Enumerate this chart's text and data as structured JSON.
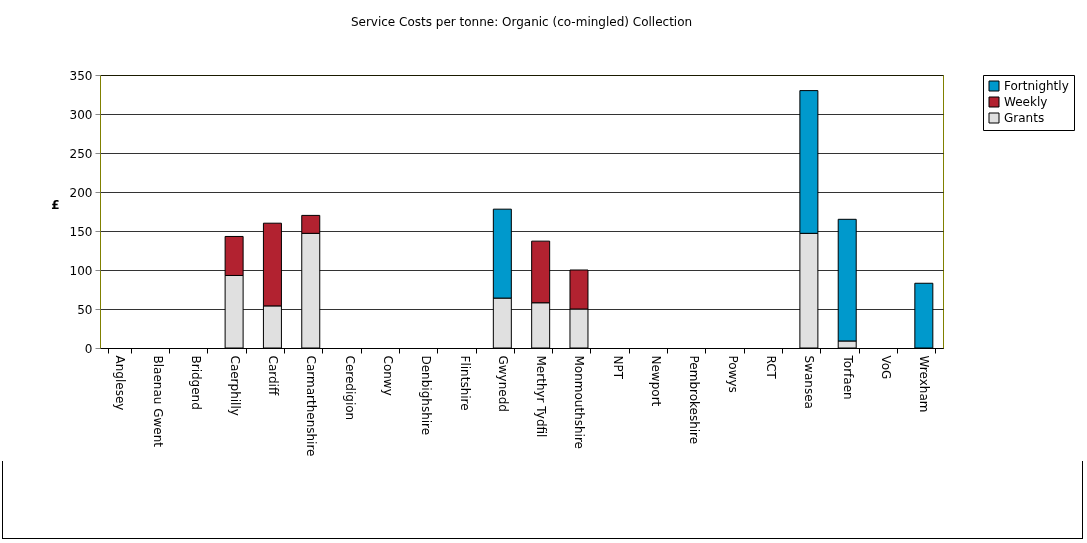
{
  "chart_data": {
    "type": "bar",
    "title": "Service Costs per tonne: Organic (co-mingled) Collection",
    "ylabel": "£",
    "categories": [
      "Anglesey",
      "Blaenau Gwent",
      "Bridgend",
      "Caerphilly",
      "Cardiff",
      "Carmarthenshire",
      "Ceredigion",
      "Conwy",
      "Denbighshire",
      "Flintshire",
      "Gwynedd",
      "Merthyr Tydfil",
      "Monmouthshire",
      "NPT",
      "Newport",
      "Pembrokeshire",
      "Powys",
      "RCT",
      "Swansea",
      "Torfaen",
      "VoG",
      "Wrexham"
    ],
    "stacked": true,
    "series": [
      {
        "name": "Grants",
        "color": "#e0e0e0",
        "values": [
          null,
          null,
          null,
          93,
          54,
          147,
          null,
          null,
          null,
          null,
          64,
          58,
          50,
          null,
          null,
          null,
          null,
          null,
          147,
          9,
          null,
          null
        ]
      },
      {
        "name": "Weekly",
        "color": "#b22230",
        "values": [
          null,
          null,
          null,
          50,
          106,
          23,
          null,
          null,
          null,
          null,
          null,
          79,
          50,
          null,
          null,
          null,
          null,
          null,
          null,
          null,
          null,
          null
        ]
      },
      {
        "name": "Fortnightly",
        "color": "#0099cc",
        "values": [
          null,
          null,
          null,
          null,
          null,
          null,
          null,
          null,
          null,
          null,
          114,
          null,
          null,
          null,
          null,
          null,
          null,
          null,
          183,
          156,
          null,
          83
        ]
      }
    ],
    "ylim": [
      0,
      350
    ],
    "yticks": [
      0,
      50,
      100,
      150,
      200,
      250,
      300,
      350
    ],
    "grid": "y",
    "legend": "right"
  }
}
